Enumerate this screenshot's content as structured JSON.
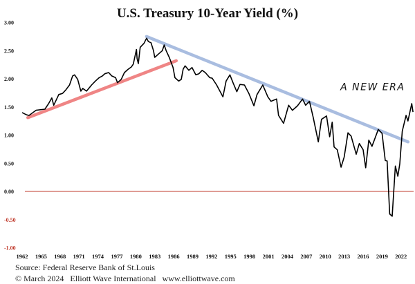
{
  "chart_data": {
    "type": "line",
    "title": "U.S. Treasury 10-Year Yield (%)",
    "xlabel": "",
    "ylabel": "",
    "xlim": [
      1962,
      2024
    ],
    "ylim": [
      -1.0,
      3.0
    ],
    "yticks": [
      3.0,
      2.5,
      2.0,
      1.5,
      1.0,
      0.5,
      0.0,
      -0.5,
      -1.0
    ],
    "ytick_labels": [
      "3.00",
      "2.50",
      "2.00",
      "1.50",
      "1.00",
      "0.50",
      "0.00",
      "-0.50",
      "-1.00"
    ],
    "xticks": [
      1962,
      1965,
      1968,
      1971,
      1974,
      1977,
      1980,
      1983,
      1986,
      1989,
      1992,
      1995,
      1998,
      2001,
      2004,
      2007,
      2010,
      2013,
      2016,
      2019,
      2022
    ],
    "xtick_labels": [
      "1962",
      "1965",
      "1968",
      "1971",
      "1974",
      "1977",
      "1980",
      "1983",
      "1986",
      "1989",
      "1992",
      "1995",
      "1998",
      "2001",
      "2004",
      "2007",
      "2010",
      "2013",
      "2016",
      "2019",
      "2022"
    ],
    "grid": false,
    "zero_line": {
      "value": 0.0,
      "color": "#c0392b"
    },
    "negative_label_color": "#c0392b",
    "series": [
      {
        "name": "10-Year Yield",
        "color": "#000000",
        "points": [
          [
            1962.0,
            1.4
          ],
          [
            1962.7,
            1.36
          ],
          [
            1963.1,
            1.35
          ],
          [
            1964.2,
            1.44
          ],
          [
            1965.6,
            1.46
          ],
          [
            1966.2,
            1.56
          ],
          [
            1966.7,
            1.66
          ],
          [
            1967.0,
            1.53
          ],
          [
            1967.8,
            1.72
          ],
          [
            1968.4,
            1.74
          ],
          [
            1968.9,
            1.8
          ],
          [
            1969.5,
            1.89
          ],
          [
            1970.0,
            2.05
          ],
          [
            1970.3,
            2.07
          ],
          [
            1970.8,
            1.99
          ],
          [
            1971.3,
            1.78
          ],
          [
            1971.6,
            1.83
          ],
          [
            1972.2,
            1.78
          ],
          [
            1973.0,
            1.89
          ],
          [
            1973.6,
            1.96
          ],
          [
            1974.2,
            2.02
          ],
          [
            1974.7,
            2.05
          ],
          [
            1975.1,
            2.09
          ],
          [
            1975.7,
            2.11
          ],
          [
            1976.2,
            2.05
          ],
          [
            1976.8,
            2.02
          ],
          [
            1977.1,
            1.93
          ],
          [
            1977.7,
            1.99
          ],
          [
            1978.2,
            2.11
          ],
          [
            1978.8,
            2.17
          ],
          [
            1979.3,
            2.21
          ],
          [
            1979.6,
            2.26
          ],
          [
            1980.1,
            2.52
          ],
          [
            1980.2,
            2.36
          ],
          [
            1980.4,
            2.27
          ],
          [
            1980.7,
            2.56
          ],
          [
            1981.3,
            2.63
          ],
          [
            1981.7,
            2.72
          ],
          [
            1982.0,
            2.66
          ],
          [
            1982.4,
            2.64
          ],
          [
            1982.8,
            2.5
          ],
          [
            1983.0,
            2.38
          ],
          [
            1983.7,
            2.45
          ],
          [
            1984.2,
            2.5
          ],
          [
            1984.5,
            2.6
          ],
          [
            1984.8,
            2.5
          ],
          [
            1985.3,
            2.38
          ],
          [
            1985.9,
            2.2
          ],
          [
            1986.2,
            2.02
          ],
          [
            1986.8,
            1.96
          ],
          [
            1987.2,
            1.99
          ],
          [
            1987.5,
            2.17
          ],
          [
            1987.8,
            2.23
          ],
          [
            1988.4,
            2.15
          ],
          [
            1988.9,
            2.2
          ],
          [
            1989.5,
            2.07
          ],
          [
            1990.0,
            2.09
          ],
          [
            1990.5,
            2.15
          ],
          [
            1991.0,
            2.11
          ],
          [
            1991.7,
            2.02
          ],
          [
            1992.1,
            2.01
          ],
          [
            1992.8,
            1.89
          ],
          [
            1993.8,
            1.68
          ],
          [
            1994.3,
            1.96
          ],
          [
            1994.9,
            2.07
          ],
          [
            1995.4,
            1.93
          ],
          [
            1996.0,
            1.77
          ],
          [
            1996.5,
            1.9
          ],
          [
            1997.2,
            1.89
          ],
          [
            1997.9,
            1.74
          ],
          [
            1998.7,
            1.52
          ],
          [
            1999.2,
            1.72
          ],
          [
            2000.1,
            1.89
          ],
          [
            2000.9,
            1.68
          ],
          [
            2001.4,
            1.6
          ],
          [
            2002.3,
            1.64
          ],
          [
            2002.6,
            1.35
          ],
          [
            2003.4,
            1.21
          ],
          [
            2004.2,
            1.53
          ],
          [
            2004.8,
            1.44
          ],
          [
            2005.6,
            1.52
          ],
          [
            2006.4,
            1.64
          ],
          [
            2006.9,
            1.53
          ],
          [
            2007.5,
            1.6
          ],
          [
            2008.1,
            1.31
          ],
          [
            2008.9,
            0.88
          ],
          [
            2009.4,
            1.28
          ],
          [
            2010.2,
            1.34
          ],
          [
            2010.7,
            0.97
          ],
          [
            2011.1,
            1.23
          ],
          [
            2011.4,
            0.79
          ],
          [
            2011.9,
            0.74
          ],
          [
            2012.5,
            0.43
          ],
          [
            2013.0,
            0.61
          ],
          [
            2013.6,
            1.04
          ],
          [
            2014.1,
            0.98
          ],
          [
            2014.9,
            0.66
          ],
          [
            2015.4,
            0.85
          ],
          [
            2016.0,
            0.74
          ],
          [
            2016.4,
            0.42
          ],
          [
            2016.9,
            0.91
          ],
          [
            2017.4,
            0.8
          ],
          [
            2018.4,
            1.1
          ],
          [
            2019.0,
            1.03
          ],
          [
            2019.5,
            0.55
          ],
          [
            2019.8,
            0.54
          ],
          [
            2020.2,
            -0.4
          ],
          [
            2020.6,
            -0.44
          ],
          [
            2021.1,
            0.45
          ],
          [
            2021.5,
            0.27
          ],
          [
            2021.8,
            0.49
          ],
          [
            2022.2,
            1.07
          ],
          [
            2022.8,
            1.35
          ],
          [
            2023.1,
            1.25
          ],
          [
            2023.7,
            1.56
          ],
          [
            2023.9,
            1.41
          ]
        ]
      }
    ],
    "trendlines": [
      {
        "name": "rising-support",
        "color": "#ef8585",
        "from": [
          1962.9,
          1.31
        ],
        "to": [
          1986.4,
          2.32
        ]
      },
      {
        "name": "falling-resistance",
        "color": "#a9bde0",
        "from": [
          1981.7,
          2.75
        ],
        "to": [
          2023.1,
          0.88
        ]
      }
    ],
    "annotations": [
      {
        "text": "A NEW ERA",
        "at": [
          2012.4,
          1.8
        ]
      }
    ]
  },
  "footer": {
    "source": "Source: Federal Reserve Bank of St.Louis",
    "copyright": "© March 2024   Elliott Wave International   www.elliottwave.com"
  }
}
